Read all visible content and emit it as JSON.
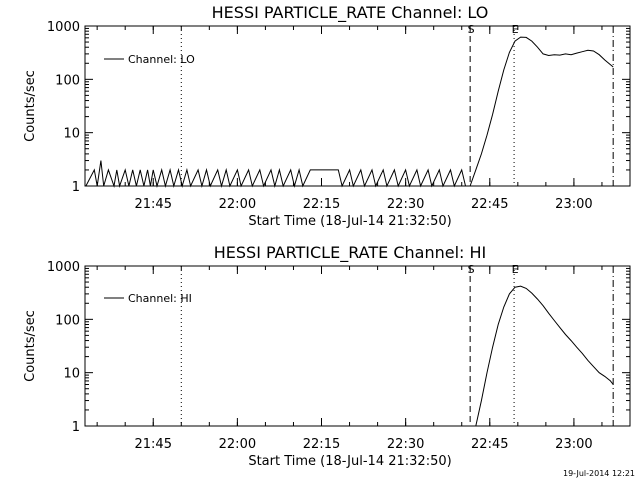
{
  "chart_data": [
    {
      "type": "line",
      "title": "HESSI PARTICLE_RATE Channel: LO",
      "xlabel": "Start Time (18-Jul-14 21:32:50)",
      "ylabel": "Counts/sec",
      "y_scale": "log",
      "ylim": [
        1,
        1000
      ],
      "xlim": [
        "21:32:50",
        "23:10:00"
      ],
      "x_ticks": [
        "21:45",
        "22:00",
        "22:15",
        "22:30",
        "22:45",
        "23:00"
      ],
      "y_ticks": [
        "1",
        "10",
        "100",
        "1000"
      ],
      "legend": {
        "entries": [
          "Channel: LO"
        ],
        "placement": "upper-left"
      },
      "markers": [
        {
          "time": "21:50:00",
          "label": "",
          "style": "dotted"
        },
        {
          "time": "22:41:30",
          "label": "S",
          "style": "dashed"
        },
        {
          "time": "22:49:20",
          "label": "E",
          "style": "dotted"
        },
        {
          "time": "23:07:00",
          "label": "",
          "style": "dash-dot"
        }
      ],
      "series": [
        {
          "name": "Channel: LO",
          "points": [
            [
              "21:33:00",
              1
            ],
            [
              "21:34:30",
              2
            ],
            [
              "21:35:00",
              1
            ],
            [
              "21:35:40",
              3
            ],
            [
              "21:36:10",
              1
            ],
            [
              "21:37:00",
              2
            ],
            [
              "21:38:00",
              1
            ],
            [
              "21:38:30",
              2
            ],
            [
              "21:39:00",
              1
            ],
            [
              "21:40:00",
              2
            ],
            [
              "21:40:40",
              1
            ],
            [
              "21:41:20",
              2
            ],
            [
              "21:42:00",
              1
            ],
            [
              "21:42:40",
              2
            ],
            [
              "21:43:20",
              1
            ],
            [
              "21:44:00",
              2
            ],
            [
              "21:44:30",
              1
            ],
            [
              "21:45:00",
              2
            ],
            [
              "21:45:40",
              1
            ],
            [
              "21:46:30",
              2
            ],
            [
              "21:47:10",
              1
            ],
            [
              "21:48:00",
              2
            ],
            [
              "21:48:40",
              1
            ],
            [
              "21:49:30",
              2
            ],
            [
              "21:50:10",
              1
            ],
            [
              "21:51:00",
              2
            ],
            [
              "21:51:40",
              1
            ],
            [
              "21:53:00",
              2
            ],
            [
              "21:53:40",
              1
            ],
            [
              "21:54:30",
              2
            ],
            [
              "21:55:10",
              1
            ],
            [
              "21:56:30",
              2
            ],
            [
              "21:57:10",
              1
            ],
            [
              "21:58:00",
              2
            ],
            [
              "21:58:40",
              1
            ],
            [
              "22:00:00",
              2
            ],
            [
              "22:00:40",
              1
            ],
            [
              "22:02:00",
              2
            ],
            [
              "22:02:40",
              1
            ],
            [
              "22:04:00",
              2
            ],
            [
              "22:04:40",
              1
            ],
            [
              "22:06:00",
              2
            ],
            [
              "22:06:40",
              1
            ],
            [
              "22:07:30",
              2
            ],
            [
              "22:08:10",
              1
            ],
            [
              "22:09:30",
              2
            ],
            [
              "22:10:10",
              1
            ],
            [
              "22:11:00",
              2
            ],
            [
              "22:11:40",
              1
            ],
            [
              "22:13:00",
              2
            ],
            [
              "22:18:00",
              2
            ],
            [
              "22:18:40",
              1
            ],
            [
              "22:20:00",
              2
            ],
            [
              "22:20:40",
              1
            ],
            [
              "22:22:00",
              2
            ],
            [
              "22:22:40",
              1
            ],
            [
              "22:24:00",
              2
            ],
            [
              "22:24:40",
              1
            ],
            [
              "22:26:00",
              2
            ],
            [
              "22:26:40",
              1
            ],
            [
              "22:28:00",
              2
            ],
            [
              "22:28:40",
              1
            ],
            [
              "22:30:00",
              2
            ],
            [
              "22:30:40",
              1
            ],
            [
              "22:32:00",
              2
            ],
            [
              "22:32:40",
              1
            ],
            [
              "22:34:00",
              2
            ],
            [
              "22:34:40",
              1
            ],
            [
              "22:36:00",
              2
            ],
            [
              "22:36:40",
              1
            ],
            [
              "22:38:00",
              2
            ],
            [
              "22:38:40",
              1
            ],
            [
              "22:40:00",
              2
            ],
            [
              "22:40:40",
              1
            ],
            [
              "22:41:30",
              1
            ],
            [
              "22:42:30",
              2
            ],
            [
              "22:43:30",
              4
            ],
            [
              "22:44:30",
              9
            ],
            [
              "22:45:30",
              22
            ],
            [
              "22:46:30",
              60
            ],
            [
              "22:47:30",
              150
            ],
            [
              "22:48:30",
              320
            ],
            [
              "22:49:30",
              520
            ],
            [
              "22:50:30",
              620
            ],
            [
              "22:51:30",
              610
            ],
            [
              "22:52:30",
              520
            ],
            [
              "22:53:30",
              400
            ],
            [
              "22:54:30",
              300
            ],
            [
              "22:55:30",
              280
            ],
            [
              "22:56:30",
              290
            ],
            [
              "22:57:30",
              285
            ],
            [
              "22:58:30",
              300
            ],
            [
              "22:59:30",
              290
            ],
            [
              "23:00:30",
              310
            ],
            [
              "23:01:30",
              330
            ],
            [
              "23:02:30",
              350
            ],
            [
              "23:03:30",
              340
            ],
            [
              "23:04:30",
              290
            ],
            [
              "23:05:30",
              230
            ],
            [
              "23:07:00",
              170
            ]
          ]
        }
      ]
    },
    {
      "type": "line",
      "title": "HESSI PARTICLE_RATE Channel: HI",
      "xlabel": "Start Time (18-Jul-14 21:32:50)",
      "ylabel": "Counts/sec",
      "y_scale": "log",
      "ylim": [
        1,
        1000
      ],
      "xlim": [
        "21:32:50",
        "23:10:00"
      ],
      "x_ticks": [
        "21:45",
        "22:00",
        "22:15",
        "22:30",
        "22:45",
        "23:00"
      ],
      "y_ticks": [
        "1",
        "10",
        "100",
        "1000"
      ],
      "legend": {
        "entries": [
          "Channel: HI"
        ],
        "placement": "upper-left"
      },
      "markers": [
        {
          "time": "21:50:00",
          "label": "",
          "style": "dotted"
        },
        {
          "time": "22:41:30",
          "label": "S",
          "style": "dashed"
        },
        {
          "time": "22:49:20",
          "label": "E",
          "style": "dotted"
        },
        {
          "time": "23:07:00",
          "label": "",
          "style": "dash-dot"
        }
      ],
      "series": [
        {
          "name": "Channel: HI",
          "points": [
            [
              "22:42:30",
              1
            ],
            [
              "22:43:30",
              3
            ],
            [
              "22:44:30",
              10
            ],
            [
              "22:45:30",
              30
            ],
            [
              "22:46:30",
              80
            ],
            [
              "22:47:30",
              170
            ],
            [
              "22:48:30",
              300
            ],
            [
              "22:49:30",
              400
            ],
            [
              "22:50:30",
              420
            ],
            [
              "22:51:30",
              380
            ],
            [
              "22:52:30",
              310
            ],
            [
              "22:53:30",
              240
            ],
            [
              "22:54:30",
              180
            ],
            [
              "22:55:30",
              130
            ],
            [
              "22:56:30",
              95
            ],
            [
              "22:57:30",
              70
            ],
            [
              "22:58:30",
              52
            ],
            [
              "22:59:30",
              40
            ],
            [
              "23:00:30",
              30
            ],
            [
              "23:01:30",
              23
            ],
            [
              "23:02:30",
              17
            ],
            [
              "23:03:30",
              13
            ],
            [
              "23:04:30",
              10
            ],
            [
              "23:05:30",
              8.5
            ],
            [
              "23:06:30",
              7
            ],
            [
              "23:07:00",
              6
            ]
          ]
        }
      ]
    }
  ],
  "footer": {
    "timestamp": "19-Jul-2014 12:21"
  }
}
